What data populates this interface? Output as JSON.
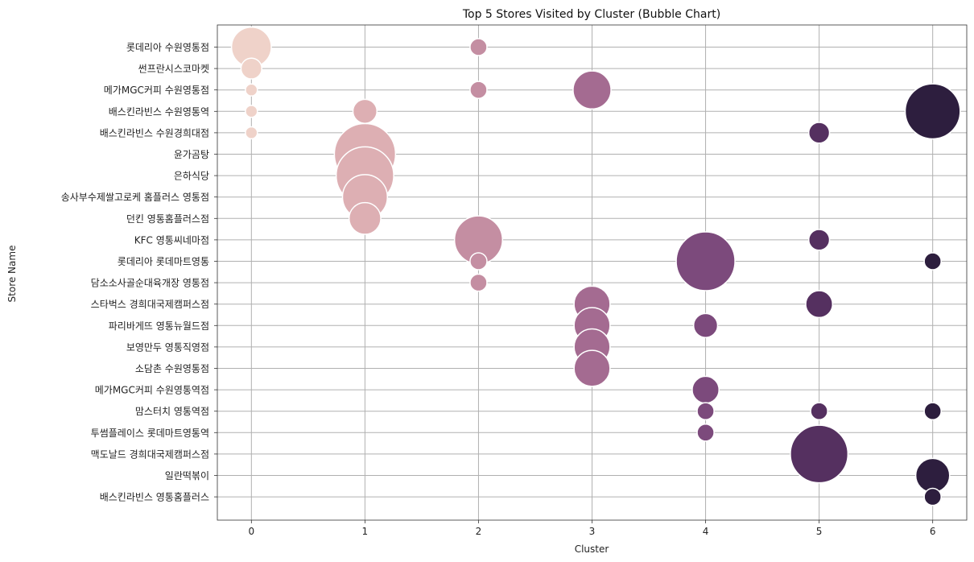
{
  "chart_data": {
    "type": "scatter",
    "title": "Top 5 Stores Visited by Cluster (Bubble Chart)",
    "xlabel": "Cluster",
    "ylabel": "Store Name",
    "x_ticks": [
      0,
      1,
      2,
      3,
      4,
      5,
      6
    ],
    "xlim": [
      -0.3,
      6.3
    ],
    "grid": true,
    "legend": false,
    "palette": {
      "0": "#efd2c9",
      "1": "#ddafb3",
      "2": "#c48ea2",
      "3": "#a46b91",
      "4": "#7c4a7c",
      "5": "#553060",
      "6": "#2d1e3e"
    },
    "stores": [
      "롯데리아 수원영통점",
      "썬프란시스코마켓",
      "메가MGC커피 수원영통점",
      "배스킨라빈스 수원영통역",
      "배스킨라빈스 수원경희대점",
      "윤가곰탕",
      "은하식당",
      "송사부수제쌀고로케 홈플러스 영통점",
      "던킨 영통홈플러스점",
      "KFC 영통씨네마점",
      "롯데리아 롯데마트영통",
      "담소소사골순대육개장 영통점",
      "스타벅스 경희대국제캠퍼스점",
      "파리바게뜨 영통뉴월드점",
      "보영만두 영통직영점",
      "소담촌 수원영통점",
      "메가MGC커피 수원영통역점",
      "맘스터치 영통역점",
      "투썸플레이스 롯데마트영통역",
      "맥도날드 경희대국제캠퍼스점",
      "일란떡볶이",
      "배스킨라빈스 영통홈플러스"
    ],
    "points": [
      {
        "cluster": 0,
        "store": "롯데리아 수원영통점",
        "visits": 11
      },
      {
        "cluster": 0,
        "store": "썬프란시스코마켓",
        "visits": 3
      },
      {
        "cluster": 0,
        "store": "메가MGC커피 수원영통점",
        "visits": 1
      },
      {
        "cluster": 0,
        "store": "배스킨라빈스 수원영통역",
        "visits": 1
      },
      {
        "cluster": 0,
        "store": "배스킨라빈스 수원경희대점",
        "visits": 1
      },
      {
        "cluster": 1,
        "store": "배스킨라빈스 수원영통역",
        "visits": 4
      },
      {
        "cluster": 1,
        "store": "윤가곰탕",
        "visits": 26
      },
      {
        "cluster": 1,
        "store": "은하식당",
        "visits": 23
      },
      {
        "cluster": 1,
        "store": "송사부수제쌀고로케 홈플러스 영통점",
        "visits": 14
      },
      {
        "cluster": 1,
        "store": "던킨 영통홈플러스점",
        "visits": 7
      },
      {
        "cluster": 2,
        "store": "롯데리아 수원영통점",
        "visits": 2
      },
      {
        "cluster": 2,
        "store": "메가MGC커피 수원영통점",
        "visits": 2
      },
      {
        "cluster": 2,
        "store": "KFC 영통씨네마점",
        "visits": 16
      },
      {
        "cluster": 2,
        "store": "롯데리아 롯데마트영통",
        "visits": 2
      },
      {
        "cluster": 2,
        "store": "담소소사골순대육개장 영통점",
        "visits": 2
      },
      {
        "cluster": 3,
        "store": "메가MGC커피 수원영통점",
        "visits": 10
      },
      {
        "cluster": 3,
        "store": "스타벅스 경희대국제캠퍼스점",
        "visits": 9
      },
      {
        "cluster": 3,
        "store": "파리바게뜨 영통뉴월드점",
        "visits": 9
      },
      {
        "cluster": 3,
        "store": "보영만두 영통직영점",
        "visits": 9
      },
      {
        "cluster": 3,
        "store": "소담촌 수원영통점",
        "visits": 9
      },
      {
        "cluster": 4,
        "store": "롯데리아 롯데마트영통",
        "visits": 24
      },
      {
        "cluster": 4,
        "store": "파리바게뜨 영통뉴월드점",
        "visits": 4
      },
      {
        "cluster": 4,
        "store": "메가MGC커피 수원영통역점",
        "visits": 5
      },
      {
        "cluster": 4,
        "store": "맘스터치 영통역점",
        "visits": 2
      },
      {
        "cluster": 4,
        "store": "투썸플레이스 롯데마트영통역",
        "visits": 2
      },
      {
        "cluster": 5,
        "store": "배스킨라빈스 수원경희대점",
        "visits": 3
      },
      {
        "cluster": 5,
        "store": "KFC 영통씨네마점",
        "visits": 3
      },
      {
        "cluster": 5,
        "store": "스타벅스 경희대국제캠퍼스점",
        "visits": 5
      },
      {
        "cluster": 5,
        "store": "맘스터치 영통역점",
        "visits": 2
      },
      {
        "cluster": 5,
        "store": "맥도날드 경희대국제캠퍼스점",
        "visits": 23
      },
      {
        "cluster": 6,
        "store": "배스킨라빈스 수원영통역",
        "visits": 21
      },
      {
        "cluster": 6,
        "store": "롯데리아 롯데마트영통",
        "visits": 2
      },
      {
        "cluster": 6,
        "store": "맘스터치 영통역점",
        "visits": 2
      },
      {
        "cluster": 6,
        "store": "일란떡볶이",
        "visits": 8
      },
      {
        "cluster": 6,
        "store": "배스킨라빈스 영통홈플러스",
        "visits": 2
      }
    ]
  }
}
